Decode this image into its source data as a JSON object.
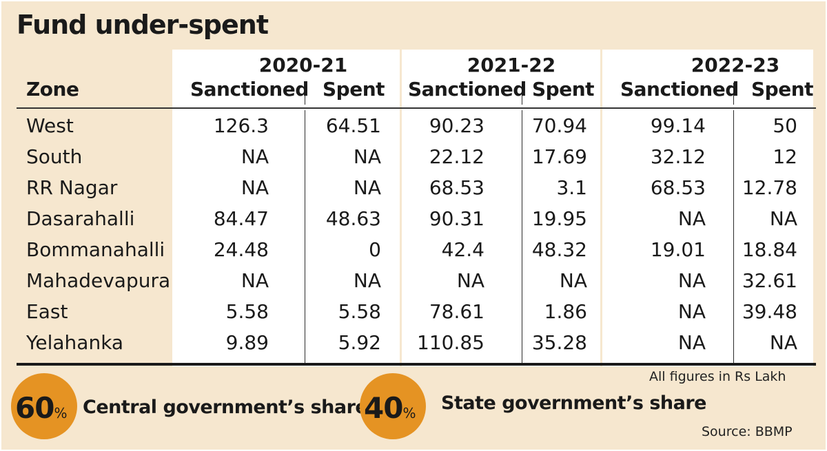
{
  "title": "Fund under-spent",
  "chart_data": {
    "type": "table",
    "title": "Fund under-spent",
    "zone_header": "Zone",
    "years": [
      "2020-21",
      "2021-22",
      "2022-23"
    ],
    "subheaders": [
      "Sanctioned",
      "Spent"
    ],
    "rows": [
      {
        "zone": "West",
        "values": [
          "126.3",
          "64.51",
          "90.23",
          "70.94",
          "99.14",
          "50"
        ]
      },
      {
        "zone": "South",
        "values": [
          "NA",
          "NA",
          "22.12",
          "17.69",
          "32.12",
          "12"
        ]
      },
      {
        "zone": "RR Nagar",
        "values": [
          "NA",
          "NA",
          "68.53",
          "3.1",
          "68.53",
          "12.78"
        ]
      },
      {
        "zone": "Dasarahalli",
        "values": [
          "84.47",
          "48.63",
          "90.31",
          "19.95",
          "NA",
          "NA"
        ]
      },
      {
        "zone": "Bommanahalli",
        "values": [
          "24.48",
          "0",
          "42.4",
          "48.32",
          "19.01",
          "18.84"
        ]
      },
      {
        "zone": "Mahadevapura",
        "values": [
          "NA",
          "NA",
          "NA",
          "NA",
          "NA",
          "32.61"
        ]
      },
      {
        "zone": "East",
        "values": [
          "5.58",
          "5.58",
          "78.61",
          "1.86",
          "NA",
          "39.48"
        ]
      },
      {
        "zone": "Yelahanka",
        "values": [
          "9.89",
          "5.92",
          "110.85",
          "35.28",
          "NA",
          "NA"
        ]
      }
    ]
  },
  "note": "All figures in Rs Lakh",
  "shares": [
    {
      "value": "60",
      "unit": "%",
      "label": "Central government’s share"
    },
    {
      "value": "40",
      "unit": "%",
      "label": "State government’s share"
    }
  ],
  "source": "Source: BBMP",
  "colors": {
    "background": "#f6e7cf",
    "panel": "#ffffff",
    "accent": "#e59323"
  }
}
